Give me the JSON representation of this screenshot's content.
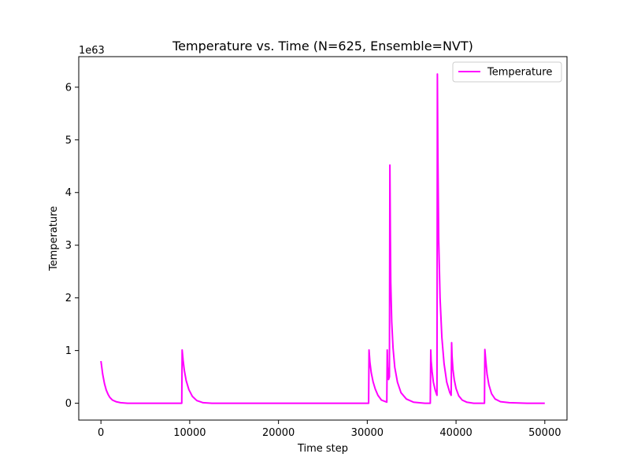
{
  "chart_data": {
    "type": "line",
    "title": "Temperature vs. Time (N=625, Ensemble=NVT)",
    "xlabel": "Time step",
    "ylabel": "Temperature",
    "y_offset_label": "1e63",
    "y_scale_exponent": 63,
    "xlim": [
      -2500,
      52500
    ],
    "ylim": [
      -0.32,
      6.58
    ],
    "x_ticks": [
      0,
      10000,
      20000,
      30000,
      40000,
      50000
    ],
    "x_tick_labels": [
      "0",
      "10000",
      "20000",
      "30000",
      "40000",
      "50000"
    ],
    "y_ticks": [
      0,
      1,
      2,
      3,
      4,
      5,
      6
    ],
    "y_tick_labels": [
      "0",
      "1",
      "2",
      "3",
      "4",
      "5",
      "6"
    ],
    "grid": false,
    "legend_position": "top-right",
    "series": [
      {
        "name": "Temperature",
        "color": "#ff00ff",
        "x": [
          0,
          200,
          400,
          600,
          800,
          1000,
          1300,
          1700,
          2200,
          3000,
          5000,
          7000,
          9100,
          9150,
          9250,
          9400,
          9600,
          9900,
          10300,
          10800,
          11500,
          12500,
          15000,
          20000,
          25000,
          30150,
          30200,
          30300,
          30450,
          30650,
          30900,
          31200,
          31600,
          32200,
          32250,
          32300,
          32400,
          32500,
          32550,
          32600,
          32650,
          32750,
          32900,
          33100,
          33400,
          33800,
          34400,
          35200,
          36500,
          37100,
          37150,
          37200,
          37300,
          37450,
          37650,
          37850,
          37900,
          37950,
          38050,
          38200,
          38400,
          38650,
          38950,
          39300,
          39450,
          39500,
          39550,
          39650,
          39800,
          40000,
          40300,
          40700,
          41200,
          42000,
          43200,
          43250,
          43350,
          43500,
          43700,
          44000,
          44400,
          45000,
          46000,
          48000,
          50000
        ],
        "y": [
          0.8,
          0.55,
          0.37,
          0.25,
          0.17,
          0.11,
          0.06,
          0.03,
          0.01,
          0.0,
          0.0,
          0.0,
          0.0,
          1.01,
          0.82,
          0.62,
          0.43,
          0.26,
          0.13,
          0.05,
          0.01,
          0.0,
          0.0,
          0.0,
          0.0,
          0.0,
          1.01,
          0.78,
          0.58,
          0.41,
          0.27,
          0.15,
          0.06,
          0.02,
          1.01,
          0.7,
          0.45,
          0.5,
          4.52,
          3.2,
          2.3,
          1.55,
          1.05,
          0.68,
          0.4,
          0.2,
          0.08,
          0.02,
          0.0,
          0.0,
          1.01,
          0.8,
          0.6,
          0.4,
          0.25,
          0.15,
          6.25,
          4.8,
          3.1,
          2.0,
          1.25,
          0.75,
          0.4,
          0.2,
          0.15,
          1.15,
          0.9,
          0.65,
          0.45,
          0.28,
          0.14,
          0.06,
          0.02,
          0.0,
          0.0,
          1.02,
          0.8,
          0.55,
          0.35,
          0.18,
          0.08,
          0.03,
          0.01,
          0.0,
          0.0
        ]
      }
    ]
  }
}
